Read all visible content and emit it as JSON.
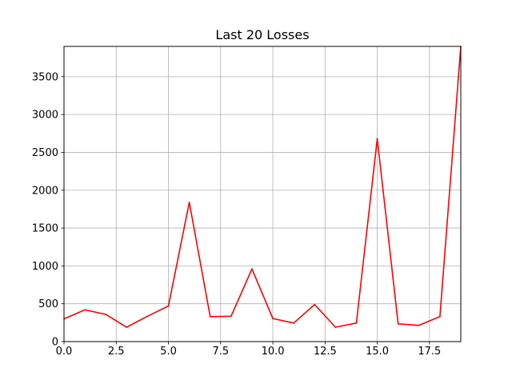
{
  "chart_data": {
    "type": "line",
    "title": "Last 20 Losses",
    "xlabel": "",
    "ylabel": "",
    "xlim": [
      0,
      19
    ],
    "ylim": [
      0,
      3900
    ],
    "grid": true,
    "line_color": "#ff0000",
    "x_ticks": [
      0.0,
      2.5,
      5.0,
      7.5,
      10.0,
      12.5,
      15.0,
      17.5
    ],
    "x_tick_labels": [
      "0.0",
      "2.5",
      "5.0",
      "7.5",
      "10.0",
      "12.5",
      "15.0",
      "17.5"
    ],
    "y_ticks": [
      0,
      500,
      1000,
      1500,
      2000,
      2500,
      3000,
      3500
    ],
    "y_tick_labels": [
      "0",
      "500",
      "1000",
      "1500",
      "2000",
      "2500",
      "3000",
      "3500"
    ],
    "series": [
      {
        "x": [
          0,
          1,
          2,
          3,
          4,
          5,
          6,
          7,
          8,
          9,
          10,
          11,
          12,
          13,
          14,
          15,
          16,
          17,
          18,
          19
        ],
        "values": [
          300,
          420,
          360,
          190,
          335,
          470,
          1840,
          330,
          335,
          960,
          305,
          245,
          490,
          190,
          245,
          2680,
          235,
          215,
          330,
          3900
        ]
      }
    ]
  }
}
